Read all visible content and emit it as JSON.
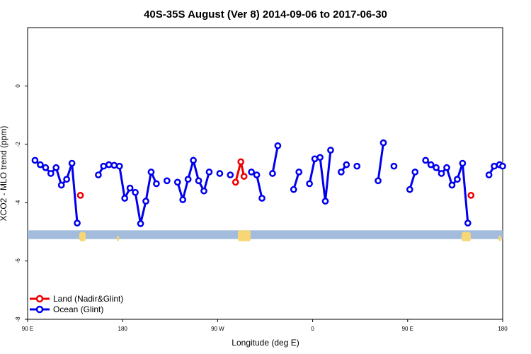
{
  "chart_data": {
    "type": "line",
    "title": "40S-35S August (Ver 8)   2014-09-06 to 2017-06-30",
    "xlabel": "Longitude (deg E)",
    "ylabel": "XCO2 - MLO trend (ppm)",
    "xlim": [
      90,
      540
    ],
    "ylim": [
      -8,
      2
    ],
    "x_ticks": [
      {
        "x": 90,
        "label": "90 E"
      },
      {
        "x": 180,
        "label": "180"
      },
      {
        "x": 270,
        "label": "90 W"
      },
      {
        "x": 360,
        "label": "0"
      },
      {
        "x": 450,
        "label": "90 E"
      },
      {
        "x": 540,
        "label": "180"
      }
    ],
    "y_ticks": [
      {
        "y": 0,
        "label": "0"
      },
      {
        "y": -2,
        "label": "-2"
      },
      {
        "y": -4,
        "label": "-4"
      },
      {
        "y": -6,
        "label": "-6"
      },
      {
        "y": -8,
        "label": "-8"
      }
    ],
    "grid": false,
    "legend_position": "bottom-left",
    "land_strip": {
      "y_top": -4.95,
      "y_bottom": -5.25,
      "ocean_color": "#a3bcdc",
      "land_color": "#f7d676"
    },
    "series": [
      {
        "name": "Ocean (Glint)",
        "color": "#0000ee",
        "segments": [
          [
            [
              97,
              -2.55
            ],
            [
              102,
              -2.7
            ],
            [
              107,
              -2.8
            ],
            [
              112,
              -3.0
            ],
            [
              117,
              -2.8
            ],
            [
              122,
              -3.4
            ],
            [
              127,
              -3.2
            ],
            [
              132,
              -2.65
            ],
            [
              137,
              -4.7
            ]
          ],
          [
            [
              157,
              -3.05
            ],
            [
              162,
              -2.75
            ]
          ],
          [
            [
              167,
              -2.7
            ],
            [
              172,
              -2.72
            ],
            [
              177,
              -2.75
            ],
            [
              182,
              -3.85
            ],
            [
              187,
              -3.5
            ],
            [
              192,
              -3.65
            ],
            [
              197,
              -4.72
            ],
            [
              202,
              -3.95
            ],
            [
              207,
              -2.95
            ],
            [
              212,
              -3.35
            ]
          ],
          [
            [
              222,
              -3.25
            ]
          ],
          [
            [
              232,
              -3.3
            ],
            [
              237,
              -3.9
            ],
            [
              242,
              -3.2
            ],
            [
              247,
              -2.55
            ],
            [
              252,
              -3.25
            ],
            [
              257,
              -3.6
            ],
            [
              262,
              -2.95
            ]
          ],
          [
            [
              272,
              -3.0
            ]
          ],
          [
            [
              282,
              -3.05
            ]
          ],
          [
            [
              302,
              -2.95
            ],
            [
              307,
              -3.05
            ],
            [
              312,
              -3.85
            ]
          ],
          [
            [
              322,
              -3.0
            ],
            [
              327,
              -2.05
            ]
          ],
          [
            [
              342,
              -3.55
            ],
            [
              347,
              -2.95
            ]
          ],
          [
            [
              357,
              -3.35
            ],
            [
              362,
              -2.5
            ],
            [
              367,
              -2.45
            ],
            [
              372,
              -3.95
            ],
            [
              377,
              -2.2
            ]
          ],
          [
            [
              387,
              -2.95
            ],
            [
              392,
              -2.7
            ]
          ],
          [
            [
              402,
              -2.75
            ]
          ],
          [
            [
              422,
              -3.25
            ],
            [
              427,
              -1.95
            ]
          ],
          [
            [
              437,
              -2.75
            ]
          ],
          [
            [
              452,
              -3.55
            ],
            [
              457,
              -2.95
            ]
          ],
          [
            [
              467,
              -2.55
            ],
            [
              472,
              -2.7
            ],
            [
              477,
              -2.8
            ],
            [
              482,
              -3.0
            ],
            [
              487,
              -2.8
            ],
            [
              492,
              -3.4
            ],
            [
              497,
              -3.2
            ],
            [
              502,
              -2.65
            ],
            [
              507,
              -4.7
            ]
          ],
          [
            [
              527,
              -3.05
            ],
            [
              532,
              -2.75
            ]
          ],
          [
            [
              537,
              -2.7
            ],
            [
              540,
              -2.75
            ]
          ]
        ]
      },
      {
        "name": "Land (Nadir&Glint)",
        "color": "#ee0000",
        "segments": [
          [
            [
              140,
              -3.75
            ]
          ],
          [
            [
              287,
              -3.3
            ],
            [
              292,
              -2.6
            ],
            [
              295,
              -3.1
            ]
          ],
          [
            [
              510,
              -3.75
            ]
          ]
        ]
      }
    ]
  },
  "legend": {
    "items": [
      {
        "label": "Land (Nadir&Glint)",
        "color": "#ee0000"
      },
      {
        "label": "Ocean (Glint)",
        "color": "#0000ee"
      }
    ]
  }
}
